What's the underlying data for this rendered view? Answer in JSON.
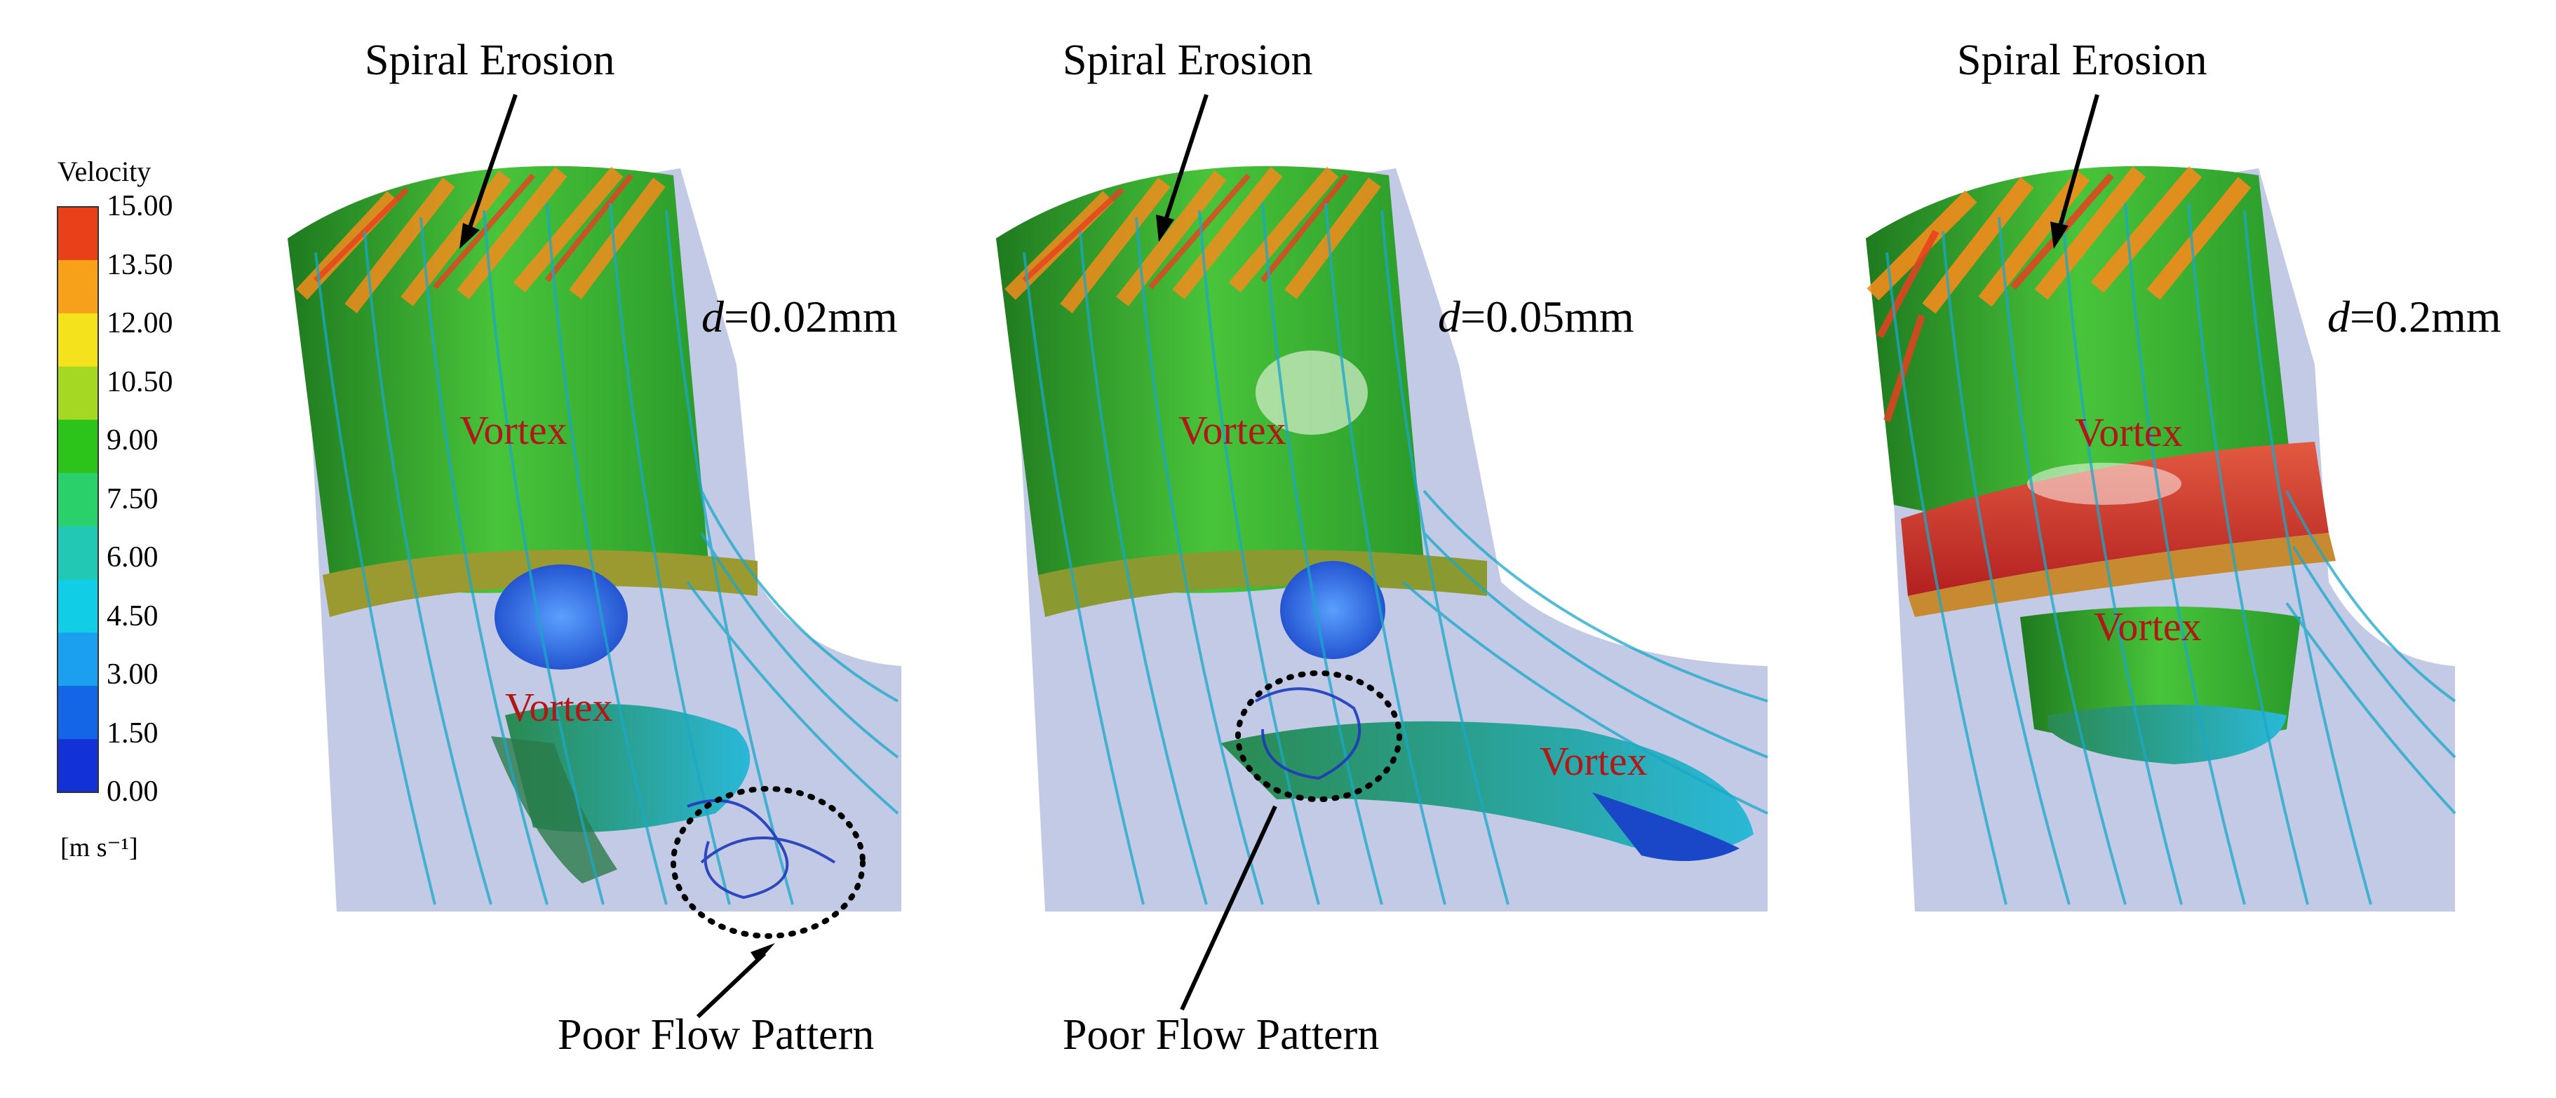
{
  "legend": {
    "title": "Velocity",
    "unit": "[m s⁻¹]",
    "ticks": [
      "15.00",
      "13.50",
      "12.00",
      "10.50",
      "9.00",
      "7.50",
      "6.00",
      "4.50",
      "3.00",
      "1.50",
      "0.00"
    ],
    "colors": [
      "#e8411a",
      "#f7a11a",
      "#f4e21c",
      "#a4d822",
      "#2cc41c",
      "#2ad06a",
      "#22c8b4",
      "#12cde6",
      "#1aa0ee",
      "#1466e6",
      "#1232d6"
    ]
  },
  "panels": [
    {
      "top_label": "Spiral Erosion",
      "d_prefix": "d",
      "d_value": "=0.02mm",
      "vortex_1": "Vortex",
      "vortex_2": "Vortex",
      "bottom_label": "Poor Flow Pattern"
    },
    {
      "top_label": "Spiral Erosion",
      "d_prefix": "d",
      "d_value": "=0.05mm",
      "vortex_1": "Vortex",
      "vortex_2": "Vortex",
      "bottom_label": "Poor Flow Pattern"
    },
    {
      "top_label": "Spiral Erosion",
      "d_prefix": "d",
      "d_value": "=0.2mm",
      "vortex_1": "Vortex",
      "vortex_2": "Vortex"
    }
  ]
}
